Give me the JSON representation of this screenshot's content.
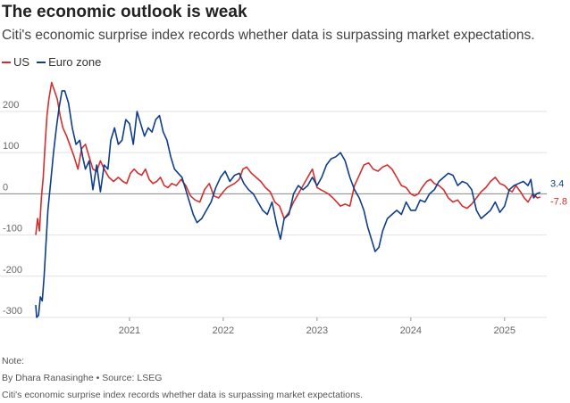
{
  "title": "The economic outlook is weak",
  "subtitle": "Citi's economic surprise index records whether data is surpassing market expectations.",
  "legend": [
    {
      "label": "US",
      "color": "#d42e2e"
    },
    {
      "label": "Euro zone",
      "color": "#0f3d8c"
    }
  ],
  "footer": {
    "note": "Note:",
    "byline": "By Dhara Ranasinghe",
    "source": "Source: LSEG",
    "caption": "Citi's economic surprise index records whether data is surpassing market expectations."
  },
  "chart_data": {
    "type": "line",
    "title": "The economic outlook is weak",
    "xlabel": "",
    "ylabel": "",
    "xlim": [
      2020.0,
      2025.45
    ],
    "ylim": [
      -300,
      280
    ],
    "yticks": [
      {
        "value": 200,
        "label": "200"
      },
      {
        "value": 100,
        "label": "100"
      },
      {
        "value": 0,
        "label": "0"
      },
      {
        "value": -100,
        "label": "-100"
      },
      {
        "value": -200,
        "label": "-200"
      },
      {
        "value": -300,
        "label": "-300"
      }
    ],
    "xticks": [
      {
        "value": 2021,
        "label": "2021"
      },
      {
        "value": 2022,
        "label": "2022"
      },
      {
        "value": 2023,
        "label": "2023"
      },
      {
        "value": 2024,
        "label": "2024"
      },
      {
        "value": 2025,
        "label": "2025"
      }
    ],
    "grid": "horizontal",
    "end_labels": [
      {
        "series": "Euro zone",
        "value": 3.4,
        "label": "3.4"
      },
      {
        "series": "US",
        "value": -7.8,
        "label": "-7.8"
      }
    ],
    "series": [
      {
        "name": "US",
        "color": "#d42e2e",
        "x": [
          2020.0,
          2020.02,
          2020.04,
          2020.06,
          2020.08,
          2020.1,
          2020.12,
          2020.14,
          2020.17,
          2020.2,
          2020.23,
          2020.26,
          2020.29,
          2020.33,
          2020.37,
          2020.41,
          2020.45,
          2020.49,
          2020.53,
          2020.57,
          2020.61,
          2020.65,
          2020.69,
          2020.73,
          2020.78,
          2020.83,
          2020.88,
          2020.93,
          2020.97,
          2021.01,
          2021.05,
          2021.09,
          2021.13,
          2021.17,
          2021.21,
          2021.25,
          2021.29,
          2021.33,
          2021.37,
          2021.41,
          2021.45,
          2021.5,
          2021.55,
          2021.6,
          2021.65,
          2021.7,
          2021.75,
          2021.8,
          2021.85,
          2021.9,
          2021.95,
          2022.0,
          2022.04,
          2022.08,
          2022.12,
          2022.17,
          2022.21,
          2022.25,
          2022.3,
          2022.35,
          2022.4,
          2022.45,
          2022.5,
          2022.55,
          2022.6,
          2022.65,
          2022.7,
          2022.75,
          2022.8,
          2022.85,
          2022.9,
          2022.95,
          2023.0,
          2023.04,
          2023.08,
          2023.12,
          2023.17,
          2023.21,
          2023.25,
          2023.3,
          2023.35,
          2023.4,
          2023.45,
          2023.5,
          2023.55,
          2023.6,
          2023.65,
          2023.7,
          2023.75,
          2023.8,
          2023.85,
          2023.9,
          2023.95,
          2024.0,
          2024.04,
          2024.08,
          2024.12,
          2024.17,
          2024.21,
          2024.25,
          2024.3,
          2024.35,
          2024.4,
          2024.45,
          2024.5,
          2024.55,
          2024.6,
          2024.65,
          2024.7,
          2024.75,
          2024.8,
          2024.85,
          2024.9,
          2024.95,
          2025.0,
          2025.04,
          2025.08,
          2025.12,
          2025.17,
          2025.21,
          2025.25,
          2025.3,
          2025.35,
          2025.38
        ],
        "values": [
          -100,
          -60,
          -90,
          -10,
          40,
          120,
          190,
          230,
          270,
          250,
          230,
          190,
          160,
          140,
          115,
          90,
          60,
          110,
          120,
          90,
          60,
          55,
          80,
          60,
          40,
          30,
          40,
          30,
          25,
          50,
          60,
          50,
          45,
          60,
          35,
          25,
          30,
          40,
          20,
          15,
          25,
          20,
          35,
          20,
          -5,
          -15,
          -20,
          10,
          25,
          -5,
          -10,
          5,
          15,
          20,
          25,
          35,
          60,
          65,
          50,
          40,
          30,
          15,
          5,
          -20,
          -30,
          -60,
          -45,
          -20,
          0,
          20,
          40,
          60,
          15,
          10,
          5,
          0,
          -10,
          -20,
          -30,
          -25,
          -30,
          20,
          45,
          70,
          75,
          60,
          55,
          65,
          70,
          60,
          40,
          20,
          15,
          0,
          -5,
          0,
          15,
          30,
          35,
          25,
          20,
          10,
          -10,
          -20,
          -15,
          -30,
          -35,
          -25,
          -10,
          5,
          15,
          30,
          40,
          25,
          20,
          10,
          5,
          20,
          5,
          -10,
          -20,
          0,
          -10,
          -7.8
        ]
      },
      {
        "name": "Euro zone",
        "color": "#0f3d8c",
        "x": [
          2020.0,
          2020.01,
          2020.03,
          2020.05,
          2020.07,
          2020.09,
          2020.11,
          2020.13,
          2020.16,
          2020.19,
          2020.22,
          2020.25,
          2020.28,
          2020.31,
          2020.35,
          2020.39,
          2020.43,
          2020.47,
          2020.5,
          2020.53,
          2020.57,
          2020.61,
          2020.65,
          2020.69,
          2020.73,
          2020.77,
          2020.8,
          2020.84,
          2020.88,
          2020.92,
          2020.96,
          2021.0,
          2021.04,
          2021.08,
          2021.12,
          2021.16,
          2021.2,
          2021.24,
          2021.28,
          2021.32,
          2021.36,
          2021.4,
          2021.44,
          2021.48,
          2021.52,
          2021.56,
          2021.6,
          2021.64,
          2021.68,
          2021.72,
          2021.77,
          2021.82,
          2021.87,
          2021.92,
          2021.97,
          2022.02,
          2022.07,
          2022.12,
          2022.17,
          2022.22,
          2022.27,
          2022.32,
          2022.37,
          2022.42,
          2022.47,
          2022.52,
          2022.57,
          2022.61,
          2022.65,
          2022.7,
          2022.75,
          2022.8,
          2022.85,
          2022.9,
          2022.95,
          2023.0,
          2023.05,
          2023.1,
          2023.15,
          2023.2,
          2023.25,
          2023.3,
          2023.35,
          2023.4,
          2023.45,
          2023.5,
          2023.54,
          2023.58,
          2023.62,
          2023.66,
          2023.7,
          2023.75,
          2023.8,
          2023.85,
          2023.9,
          2023.95,
          2024.0,
          2024.05,
          2024.1,
          2024.15,
          2024.2,
          2024.25,
          2024.3,
          2024.35,
          2024.4,
          2024.45,
          2024.5,
          2024.55,
          2024.6,
          2024.65,
          2024.7,
          2024.75,
          2024.8,
          2024.85,
          2024.9,
          2024.95,
          2025.0,
          2025.05,
          2025.1,
          2025.15,
          2025.2,
          2025.25,
          2025.28,
          2025.31,
          2025.34,
          2025.38
        ],
        "values": [
          -270,
          -300,
          -295,
          -250,
          -260,
          -200,
          -120,
          -40,
          30,
          100,
          160,
          210,
          250,
          250,
          220,
          160,
          120,
          130,
          90,
          60,
          80,
          10,
          70,
          5,
          70,
          60,
          130,
          160,
          120,
          130,
          180,
          170,
          120,
          200,
          170,
          140,
          160,
          150,
          180,
          190,
          150,
          130,
          90,
          60,
          50,
          40,
          10,
          -20,
          -50,
          -70,
          -60,
          -40,
          -20,
          15,
          40,
          55,
          30,
          45,
          50,
          25,
          10,
          0,
          -20,
          -40,
          -50,
          -20,
          -75,
          -110,
          -60,
          -50,
          0,
          20,
          10,
          20,
          40,
          20,
          40,
          70,
          85,
          90,
          100,
          80,
          40,
          10,
          -10,
          -40,
          -80,
          -110,
          -140,
          -130,
          -90,
          -60,
          -50,
          -40,
          -50,
          -20,
          -40,
          -40,
          -15,
          -20,
          0,
          10,
          30,
          40,
          50,
          45,
          20,
          30,
          25,
          10,
          -40,
          -60,
          -50,
          -40,
          -20,
          -45,
          -30,
          10,
          20,
          25,
          30,
          20,
          35,
          -10,
          0,
          3.4
        ]
      }
    ]
  }
}
